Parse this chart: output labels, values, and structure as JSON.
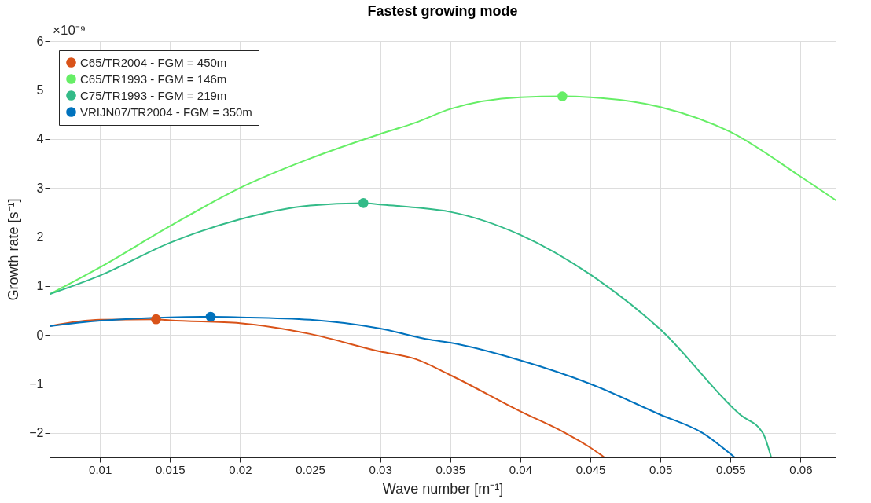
{
  "chart_data": {
    "type": "line",
    "title": "Fastest growing mode",
    "xlabel": "Wave number [m⁻¹]",
    "ylabel": "Growth rate [s⁻¹]",
    "annotations": [
      "×10⁻⁹"
    ],
    "xlim": [
      0.0064,
      0.0625
    ],
    "ylim": [
      -2.5,
      6
    ],
    "xticks": [
      0.01,
      0.015,
      0.02,
      0.025,
      0.03,
      0.035,
      0.04,
      0.045,
      0.05,
      0.055,
      0.06
    ],
    "yticks": [
      -2,
      -1,
      0,
      1,
      2,
      3,
      4,
      5,
      6
    ],
    "grid": true,
    "legend": "top left",
    "line_style": "solid",
    "series": [
      {
        "color": "#d95319",
        "x": [
          0.0064,
          0.01,
          0.014,
          0.015,
          0.02,
          0.025,
          0.03,
          0.0325,
          0.035,
          0.04,
          0.0432,
          0.045,
          0.046
        ],
        "values": [
          0.18,
          0.31,
          0.32,
          0.3,
          0.24,
          0.02,
          -0.34,
          -0.49,
          -0.82,
          -1.56,
          -2,
          -2.3,
          -2.5
        ]
      },
      {
        "color": "#66ee66",
        "x": [
          0.0064,
          0.01,
          0.015,
          0.02,
          0.025,
          0.03,
          0.0325,
          0.035,
          0.04,
          0.043,
          0.045,
          0.05,
          0.055,
          0.06,
          0.0625
        ],
        "values": [
          0.83,
          1.38,
          2.22,
          3.0,
          3.6,
          4.1,
          4.33,
          4.61,
          4.85,
          4.87,
          4.85,
          4.65,
          4.14,
          3.23,
          2.75
        ]
      },
      {
        "color": "#33bb88",
        "x": [
          0.0064,
          0.01,
          0.015,
          0.02,
          0.025,
          0.0288,
          0.03,
          0.0325,
          0.035,
          0.04,
          0.045,
          0.05,
          0.0557,
          0.0573,
          0.0579
        ],
        "values": [
          0.83,
          1.21,
          1.88,
          2.36,
          2.64,
          2.69,
          2.66,
          2.6,
          2.51,
          2.04,
          1.23,
          0.11,
          -1.63,
          -2,
          -2.5
        ]
      },
      {
        "color": "#0072bd",
        "x": [
          0.0064,
          0.01,
          0.015,
          0.0179,
          0.02,
          0.025,
          0.03,
          0.0336,
          0.035,
          0.04,
          0.045,
          0.05,
          0.053,
          0.0553
        ],
        "values": [
          0.18,
          0.29,
          0.36,
          0.37,
          0.36,
          0.31,
          0.13,
          -0.1,
          -0.16,
          -0.52,
          -1.0,
          -1.63,
          -2,
          -2.5
        ]
      },
      {
        "type": "scatter",
        "marker": "circle",
        "name": "C65/TR2004 - FGM = 450m",
        "color": "#d95319",
        "x": [
          0.014
        ],
        "values": [
          0.32
        ]
      },
      {
        "type": "scatter",
        "marker": "circle",
        "name": "C65/TR1993 - FGM = 146m",
        "color": "#66ee66",
        "x": [
          0.043
        ],
        "values": [
          4.87
        ]
      },
      {
        "type": "scatter",
        "marker": "circle",
        "name": "C75/TR1993 - FGM = 219m",
        "color": "#33bb88",
        "x": [
          0.0288
        ],
        "values": [
          2.69
        ]
      },
      {
        "type": "scatter",
        "marker": "circle",
        "name": "VRIJN07/TR2004 - FGM = 350m",
        "color": "#0072bd",
        "x": [
          0.0179
        ],
        "values": [
          0.37
        ]
      }
    ]
  }
}
